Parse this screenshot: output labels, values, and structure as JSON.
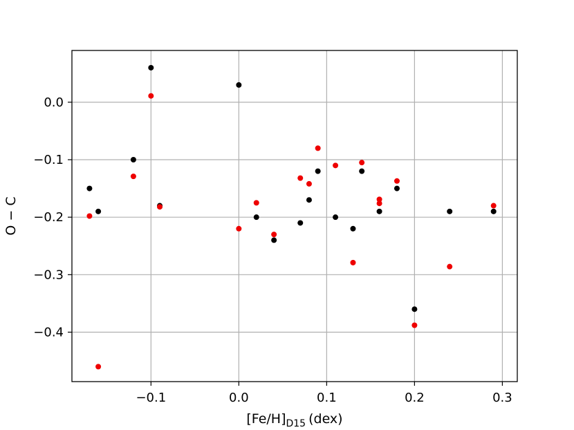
{
  "chart_data": {
    "type": "scatter",
    "xlabel": "[Fe/H]",
    "xlabel_sub": "D15",
    "xlabel_unit": "(dex)",
    "ylabel": "O − C",
    "xlim": [
      -0.19,
      0.317
    ],
    "ylim": [
      -0.486,
      0.09
    ],
    "grid": true,
    "x_ticks": [
      -0.1,
      0.0,
      0.1,
      0.2,
      0.3
    ],
    "x_tick_labels": [
      "−0.1",
      "0.0",
      "0.1",
      "0.2",
      "0.3"
    ],
    "y_ticks": [
      0.0,
      -0.1,
      -0.2,
      -0.3,
      -0.4
    ],
    "y_tick_labels": [
      "0.0",
      "−0.1",
      "−0.2",
      "−0.3",
      "−0.4"
    ],
    "series": [
      {
        "color": "#000000",
        "points": [
          [
            -0.17,
            -0.15
          ],
          [
            -0.16,
            -0.19
          ],
          [
            -0.12,
            -0.1
          ],
          [
            -0.1,
            0.06
          ],
          [
            -0.09,
            -0.18
          ],
          [
            0.0,
            0.03
          ],
          [
            0.02,
            -0.2
          ],
          [
            0.04,
            -0.24
          ],
          [
            0.07,
            -0.21
          ],
          [
            0.08,
            -0.17
          ],
          [
            0.09,
            -0.12
          ],
          [
            0.11,
            -0.2
          ],
          [
            0.13,
            -0.22
          ],
          [
            0.14,
            -0.12
          ],
          [
            0.16,
            -0.19
          ],
          [
            0.18,
            -0.15
          ],
          [
            0.2,
            -0.36
          ],
          [
            0.24,
            -0.19
          ],
          [
            0.29,
            -0.19
          ]
        ]
      },
      {
        "color": "#ee0000",
        "points": [
          [
            -0.17,
            -0.198
          ],
          [
            -0.16,
            -0.46
          ],
          [
            -0.12,
            -0.129
          ],
          [
            -0.1,
            0.011
          ],
          [
            -0.09,
            -0.182
          ],
          [
            0.0,
            -0.22
          ],
          [
            0.02,
            -0.175
          ],
          [
            0.04,
            -0.23
          ],
          [
            0.07,
            -0.132
          ],
          [
            0.08,
            -0.142
          ],
          [
            0.09,
            -0.08
          ],
          [
            0.11,
            -0.11
          ],
          [
            0.13,
            -0.279
          ],
          [
            0.14,
            -0.105
          ],
          [
            0.16,
            -0.169
          ],
          [
            0.16,
            -0.176
          ],
          [
            0.18,
            -0.137
          ],
          [
            0.2,
            -0.388
          ],
          [
            0.24,
            -0.286
          ],
          [
            0.29,
            -0.18
          ]
        ]
      }
    ]
  }
}
